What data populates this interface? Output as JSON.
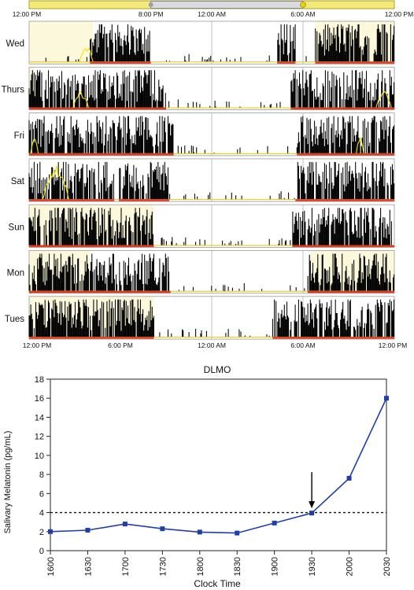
{
  "chart_data": [
    {
      "type": "actogram",
      "title": "",
      "days": [
        "Wed",
        "Thurs",
        "Fri",
        "Sat",
        "Sun",
        "Mon",
        "Tues"
      ],
      "top_axis": {
        "ticks": [
          "12:00 PM",
          "8:00 PM",
          "12:00 AM",
          "6:00 AM",
          "12:00 PM"
        ],
        "hours": [
          0,
          8,
          12,
          18,
          24
        ]
      },
      "bottom_axis": {
        "ticks": [
          "12:00 PM",
          "6:00 PM",
          "12:00 AM",
          "6:00 AM",
          "12:00 PM"
        ],
        "hours": [
          0,
          6,
          12,
          18,
          24
        ]
      },
      "x_range_hours": [
        0,
        24
      ],
      "vertical_marker_hours": [
        12,
        18
      ],
      "colors": {
        "activity": "#000000",
        "light": "#f2e600",
        "light_phase": "#fbf8dc",
        "rest_bar": "#e03b1c",
        "baseline": "#e8c400"
      },
      "light_phase_hours": [
        [
          [
            0,
            4.2
          ],
          [
            18.8,
            24
          ]
        ],
        [
          [
            0,
            0.3
          ]
        ],
        [],
        [],
        [
          [
            0,
            8.2
          ]
        ],
        [
          [
            0,
            4.0
          ],
          [
            18.5,
            24
          ]
        ],
        [
          [
            0,
            8.2
          ]
        ]
      ],
      "active_periods_hours": [
        [
          [
            4.0,
            8.0
          ],
          [
            16.3,
            17.5
          ],
          [
            18.8,
            24
          ]
        ],
        [
          [
            0,
            9.0
          ],
          [
            17.2,
            24
          ]
        ],
        [
          [
            0,
            9.5
          ],
          [
            17.6,
            24
          ]
        ],
        [
          [
            0,
            5.6
          ],
          [
            5.9,
            9.2
          ],
          [
            17.5,
            24
          ]
        ],
        [
          [
            0,
            8.2
          ],
          [
            17.3,
            24
          ]
        ],
        [
          [
            0,
            9.3
          ],
          [
            18.3,
            24
          ]
        ],
        [
          [
            0,
            8.2
          ],
          [
            16.0,
            24
          ]
        ]
      ]
    },
    {
      "type": "line",
      "title": "DLMO",
      "xlabel": "Clock Time",
      "ylabel": "Salivary Melatonin (pg/mL)",
      "categories": [
        "1600",
        "1630",
        "1700",
        "1730",
        "1800",
        "1830",
        "1900",
        "1930",
        "2000",
        "2030"
      ],
      "values": [
        2.0,
        2.15,
        2.8,
        2.3,
        1.95,
        1.85,
        2.9,
        3.95,
        7.6,
        16.0
      ],
      "ylim": [
        0,
        18
      ],
      "yticks": [
        0,
        2,
        4,
        6,
        8,
        10,
        12,
        14,
        16,
        18
      ],
      "threshold": 4,
      "arrow_at_category": "1930",
      "grid": false,
      "series_color": "#1f3fa8"
    }
  ]
}
